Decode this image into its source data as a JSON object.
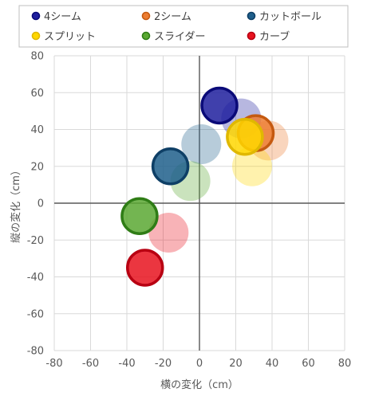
{
  "chart_data": {
    "type": "scatter",
    "xlabel": "横の変化（cm）",
    "ylabel": "縦の変化（cm）",
    "xlim": [
      -80,
      80
    ],
    "ylim": [
      -80,
      80
    ],
    "xticks": [
      -80,
      -60,
      -40,
      -20,
      0,
      20,
      40,
      60,
      80
    ],
    "yticks": [
      -80,
      -60,
      -40,
      -20,
      0,
      20,
      40,
      60,
      80
    ],
    "grid": true,
    "legend_position": "top",
    "series": [
      {
        "name": "4シーム",
        "color": "#1f1f9e",
        "edge": "#0a0a78",
        "primary": {
          "x": 11,
          "y": 53
        },
        "faded": [
          {
            "x": 23,
            "y": 46
          }
        ]
      },
      {
        "name": "2シーム",
        "color": "#ed7d31",
        "edge": "#c55a11",
        "primary": {
          "x": 31,
          "y": 38
        },
        "faded": [
          {
            "x": 38,
            "y": 34
          }
        ]
      },
      {
        "name": "カットボール",
        "color": "#1f5f8b",
        "edge": "#0e3f66",
        "primary": {
          "x": -16,
          "y": 20
        },
        "faded": [
          {
            "x": 1,
            "y": 32
          }
        ]
      },
      {
        "name": "スプリット",
        "color": "#ffd700",
        "edge": "#e0b800",
        "primary": {
          "x": 25,
          "y": 36
        },
        "faded": [
          {
            "x": 29,
            "y": 20
          }
        ]
      },
      {
        "name": "スライダー",
        "color": "#5aa832",
        "edge": "#2f7d16",
        "primary": {
          "x": -33,
          "y": -7
        },
        "faded": [
          {
            "x": -5,
            "y": 12
          }
        ]
      },
      {
        "name": "カーブ",
        "color": "#e8131e",
        "edge": "#b80012",
        "primary": {
          "x": -30,
          "y": -35
        },
        "faded": [
          {
            "x": -17,
            "y": -16
          }
        ]
      }
    ]
  }
}
